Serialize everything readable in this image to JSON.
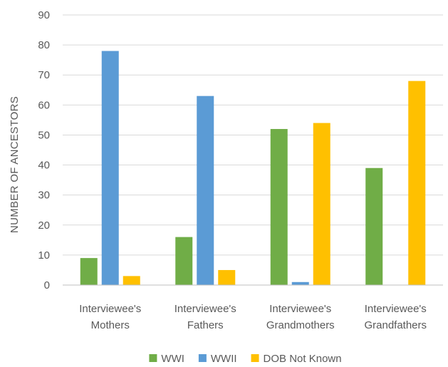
{
  "chart_data": {
    "type": "bar",
    "title": "",
    "xlabel": "",
    "ylabel": "NUMBER OF ANCESTORS",
    "ylim": [
      0,
      90
    ],
    "yticks": [
      0,
      10,
      20,
      30,
      40,
      50,
      60,
      70,
      80,
      90
    ],
    "grid": true,
    "legend_position": "bottom",
    "categories": [
      [
        "Interviewee's",
        "Mothers"
      ],
      [
        "Interviewee's",
        "Fathers"
      ],
      [
        "Interviewee's",
        "Grandmothers"
      ],
      [
        "Interviewee's",
        "Grandfathers"
      ]
    ],
    "series": [
      {
        "name": "WWI",
        "color": "#70ad47",
        "values": [
          9,
          16,
          52,
          39
        ]
      },
      {
        "name": "WWII",
        "color": "#5b9bd5",
        "values": [
          78,
          63,
          1,
          0
        ]
      },
      {
        "name": "DOB Not Known",
        "color": "#ffc000",
        "values": [
          3,
          5,
          54,
          68
        ]
      }
    ]
  }
}
